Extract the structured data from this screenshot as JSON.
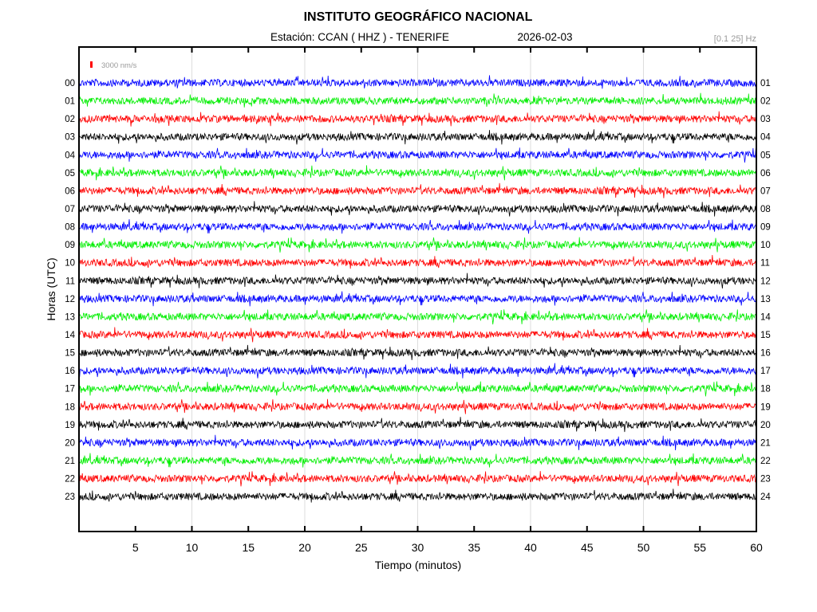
{
  "chart_data": {
    "type": "line",
    "title": "INSTITUTO GEOGRÁFICO NACIONAL",
    "subtitle_station": "Estación:  CCAN ( HHZ ) - TENERIFE",
    "subtitle_date": "2026-02-03",
    "filter_label": "[0.1 25] Hz",
    "scale_label": "3000 nm/s",
    "xlabel": "Tiempo (minutos)",
    "ylabel": "Horas (UTC)",
    "xlim": [
      0,
      60
    ],
    "x_ticks": [
      "5",
      "10",
      "15",
      "20",
      "25",
      "30",
      "35",
      "40",
      "45",
      "50",
      "55",
      "60"
    ],
    "x_minor_step": 5,
    "grid_every_minutes": 10,
    "left_labels": [
      "00",
      "01",
      "02",
      "03",
      "04",
      "05",
      "06",
      "07",
      "08",
      "09",
      "10",
      "11",
      "12",
      "13",
      "14",
      "15",
      "16",
      "17",
      "18",
      "19",
      "20",
      "21",
      "22",
      "23"
    ],
    "right_labels": [
      "01",
      "02",
      "03",
      "04",
      "05",
      "06",
      "07",
      "08",
      "09",
      "10",
      "11",
      "12",
      "13",
      "14",
      "15",
      "16",
      "17",
      "18",
      "19",
      "20",
      "21",
      "22",
      "23",
      "24"
    ],
    "trace_colors": [
      "#0000ff",
      "#00ee00",
      "#ff0000",
      "#000000"
    ],
    "scale_color": "#ff0000"
  }
}
